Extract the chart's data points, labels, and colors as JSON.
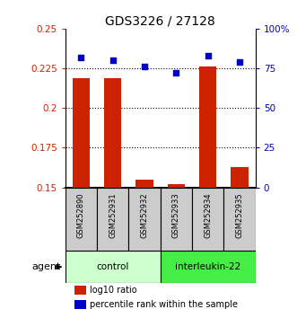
{
  "title": "GDS3226 / 27128",
  "samples": [
    "GSM252890",
    "GSM252931",
    "GSM252932",
    "GSM252933",
    "GSM252934",
    "GSM252935"
  ],
  "log10_ratio": [
    0.219,
    0.219,
    0.155,
    0.152,
    0.226,
    0.163
  ],
  "percentile_rank": [
    82,
    80,
    76,
    72,
    83,
    79
  ],
  "ylim_left": [
    0.15,
    0.25
  ],
  "yticks_left": [
    0.15,
    0.175,
    0.2,
    0.225,
    0.25
  ],
  "ytick_labels_left": [
    "0.15",
    "0.175",
    "0.2",
    "0.225",
    "0.25"
  ],
  "ylim_right": [
    0,
    100
  ],
  "yticks_right": [
    0,
    25,
    50,
    75,
    100
  ],
  "ytick_labels_right": [
    "0",
    "25",
    "50",
    "75",
    "100%"
  ],
  "bar_color": "#cc2200",
  "scatter_color": "#0000cc",
  "groups": [
    {
      "label": "control",
      "indices": [
        0,
        1,
        2
      ],
      "color": "#ccffcc"
    },
    {
      "label": "interleukin-22",
      "indices": [
        3,
        4,
        5
      ],
      "color": "#44ee44"
    }
  ],
  "agent_label": "agent",
  "legend_bar_label": "log10 ratio",
  "legend_scatter_label": "percentile rank within the sample",
  "title_fontsize": 10,
  "axis_label_color_left": "#cc2200",
  "axis_label_color_right": "#0000cc",
  "sample_box_color": "#cccccc",
  "bar_width": 0.55,
  "grid_dotted_at": [
    0.175,
    0.2,
    0.225
  ]
}
